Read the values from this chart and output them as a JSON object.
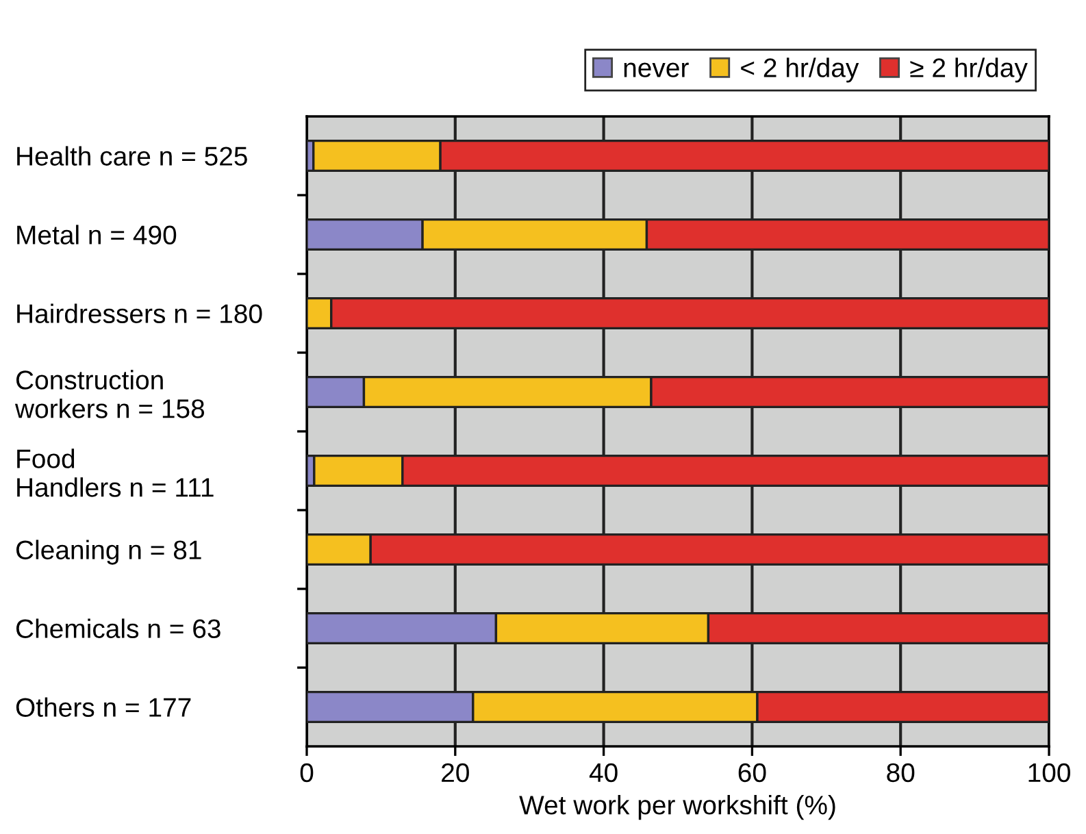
{
  "chart_data": {
    "type": "bar",
    "orientation": "horizontal",
    "stacked": true,
    "categories": [
      "Health care n = 525",
      "Metal n = 490",
      "Hairdressers n = 180",
      "Construction\nworkers n = 158",
      "Food\nHandlers n = 111",
      "Cleaning n = 81",
      "Chemicals n = 63",
      "Others n = 177"
    ],
    "series": [
      {
        "name": "never",
        "color": "#8b87c8",
        "values": [
          0.9,
          15.6,
          0,
          7.7,
          1.0,
          0,
          25.5,
          22.4
        ]
      },
      {
        "name": "< 2 hr/day",
        "color": "#f5c01f",
        "values": [
          17.1,
          30.2,
          3.3,
          38.7,
          11.9,
          8.6,
          28.6,
          38.3
        ]
      },
      {
        "name": "≥ 2 hr/day",
        "color": "#df302d",
        "values": [
          82.0,
          54.2,
          96.7,
          53.6,
          87.1,
          91.4,
          45.9,
          39.3
        ]
      }
    ],
    "xlabel": "Wet work per workshift (%)",
    "xlim": [
      0,
      100
    ],
    "xticks": [
      0,
      20,
      40,
      60,
      80,
      100
    ],
    "grid": "x",
    "legend": "top right"
  }
}
